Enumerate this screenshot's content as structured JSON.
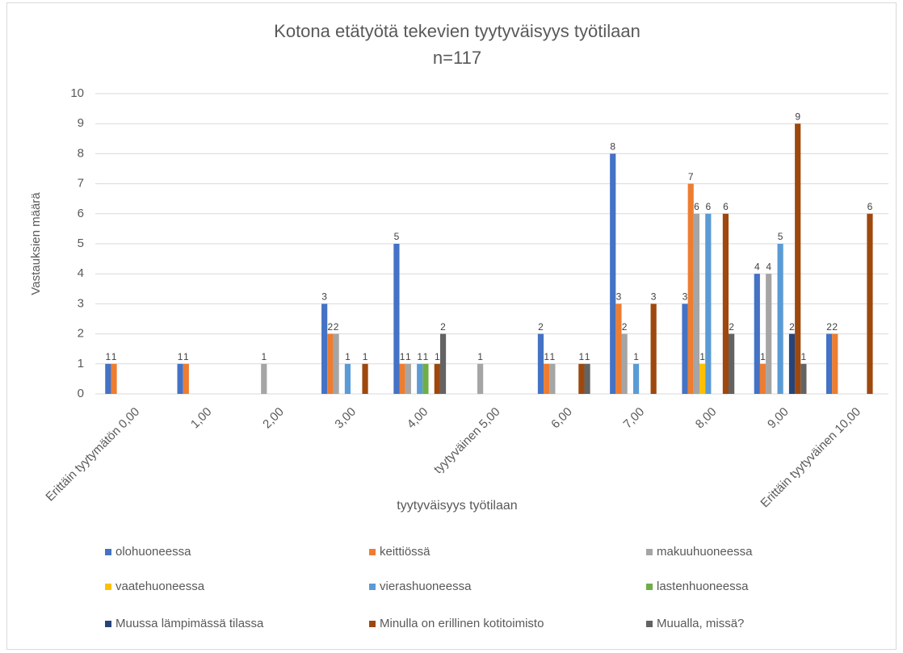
{
  "chart_data": {
    "type": "bar",
    "title": "Kotona etätyötä tekevien tyytyväisyys työtilaan",
    "subtitle": "n=117",
    "x_label": "tyytyväisyys työtilaan",
    "y_label": "Vastauksien määrä",
    "categories": [
      "Erittäin tyytymätön 0,00",
      "1,00",
      "2,00",
      "3,00",
      "4,00",
      "tyytyväinen 5,00",
      "6,00",
      "7,00",
      "8,00",
      "9,00",
      "Erittäin tyytyväinen 10,00"
    ],
    "series": [
      {
        "name": "olohuoneessa",
        "color": "#4472c4",
        "values": [
          1,
          1,
          0,
          3,
          5,
          0,
          2,
          8,
          3,
          4,
          2
        ]
      },
      {
        "name": "keittiössä",
        "color": "#ed7d31",
        "values": [
          1,
          1,
          0,
          2,
          1,
          0,
          1,
          3,
          7,
          1,
          2
        ]
      },
      {
        "name": "makuuhuoneessa",
        "color": "#a5a5a5",
        "values": [
          0,
          0,
          1,
          2,
          1,
          1,
          1,
          2,
          6,
          4,
          0
        ]
      },
      {
        "name": "vaatehuoneessa",
        "color": "#ffc000",
        "values": [
          0,
          0,
          0,
          0,
          0,
          0,
          0,
          0,
          1,
          0,
          0
        ]
      },
      {
        "name": "vierashuoneessa",
        "color": "#5b9bd5",
        "values": [
          0,
          0,
          0,
          1,
          1,
          0,
          0,
          1,
          6,
          5,
          0
        ]
      },
      {
        "name": "lastenhuoneessa",
        "color": "#70ad47",
        "values": [
          0,
          0,
          0,
          0,
          1,
          0,
          0,
          0,
          0,
          0,
          0
        ]
      },
      {
        "name": "Muussa lämpimässä tilassa",
        "color": "#264478",
        "values": [
          0,
          0,
          0,
          0,
          0,
          0,
          0,
          0,
          0,
          2,
          0
        ]
      },
      {
        "name": "Minulla on erillinen kotitoimisto",
        "color": "#9e480e",
        "values": [
          0,
          0,
          0,
          1,
          1,
          0,
          1,
          3,
          6,
          9,
          6
        ]
      },
      {
        "name": "Muualla, missä?",
        "color": "#636363",
        "values": [
          0,
          0,
          0,
          0,
          2,
          0,
          1,
          0,
          2,
          1,
          0
        ]
      }
    ],
    "ylim": [
      0,
      10
    ],
    "yticks": [
      0,
      1,
      2,
      3,
      4,
      5,
      6,
      7,
      8,
      9,
      10
    ],
    "grid": true,
    "legend": "bottom"
  }
}
